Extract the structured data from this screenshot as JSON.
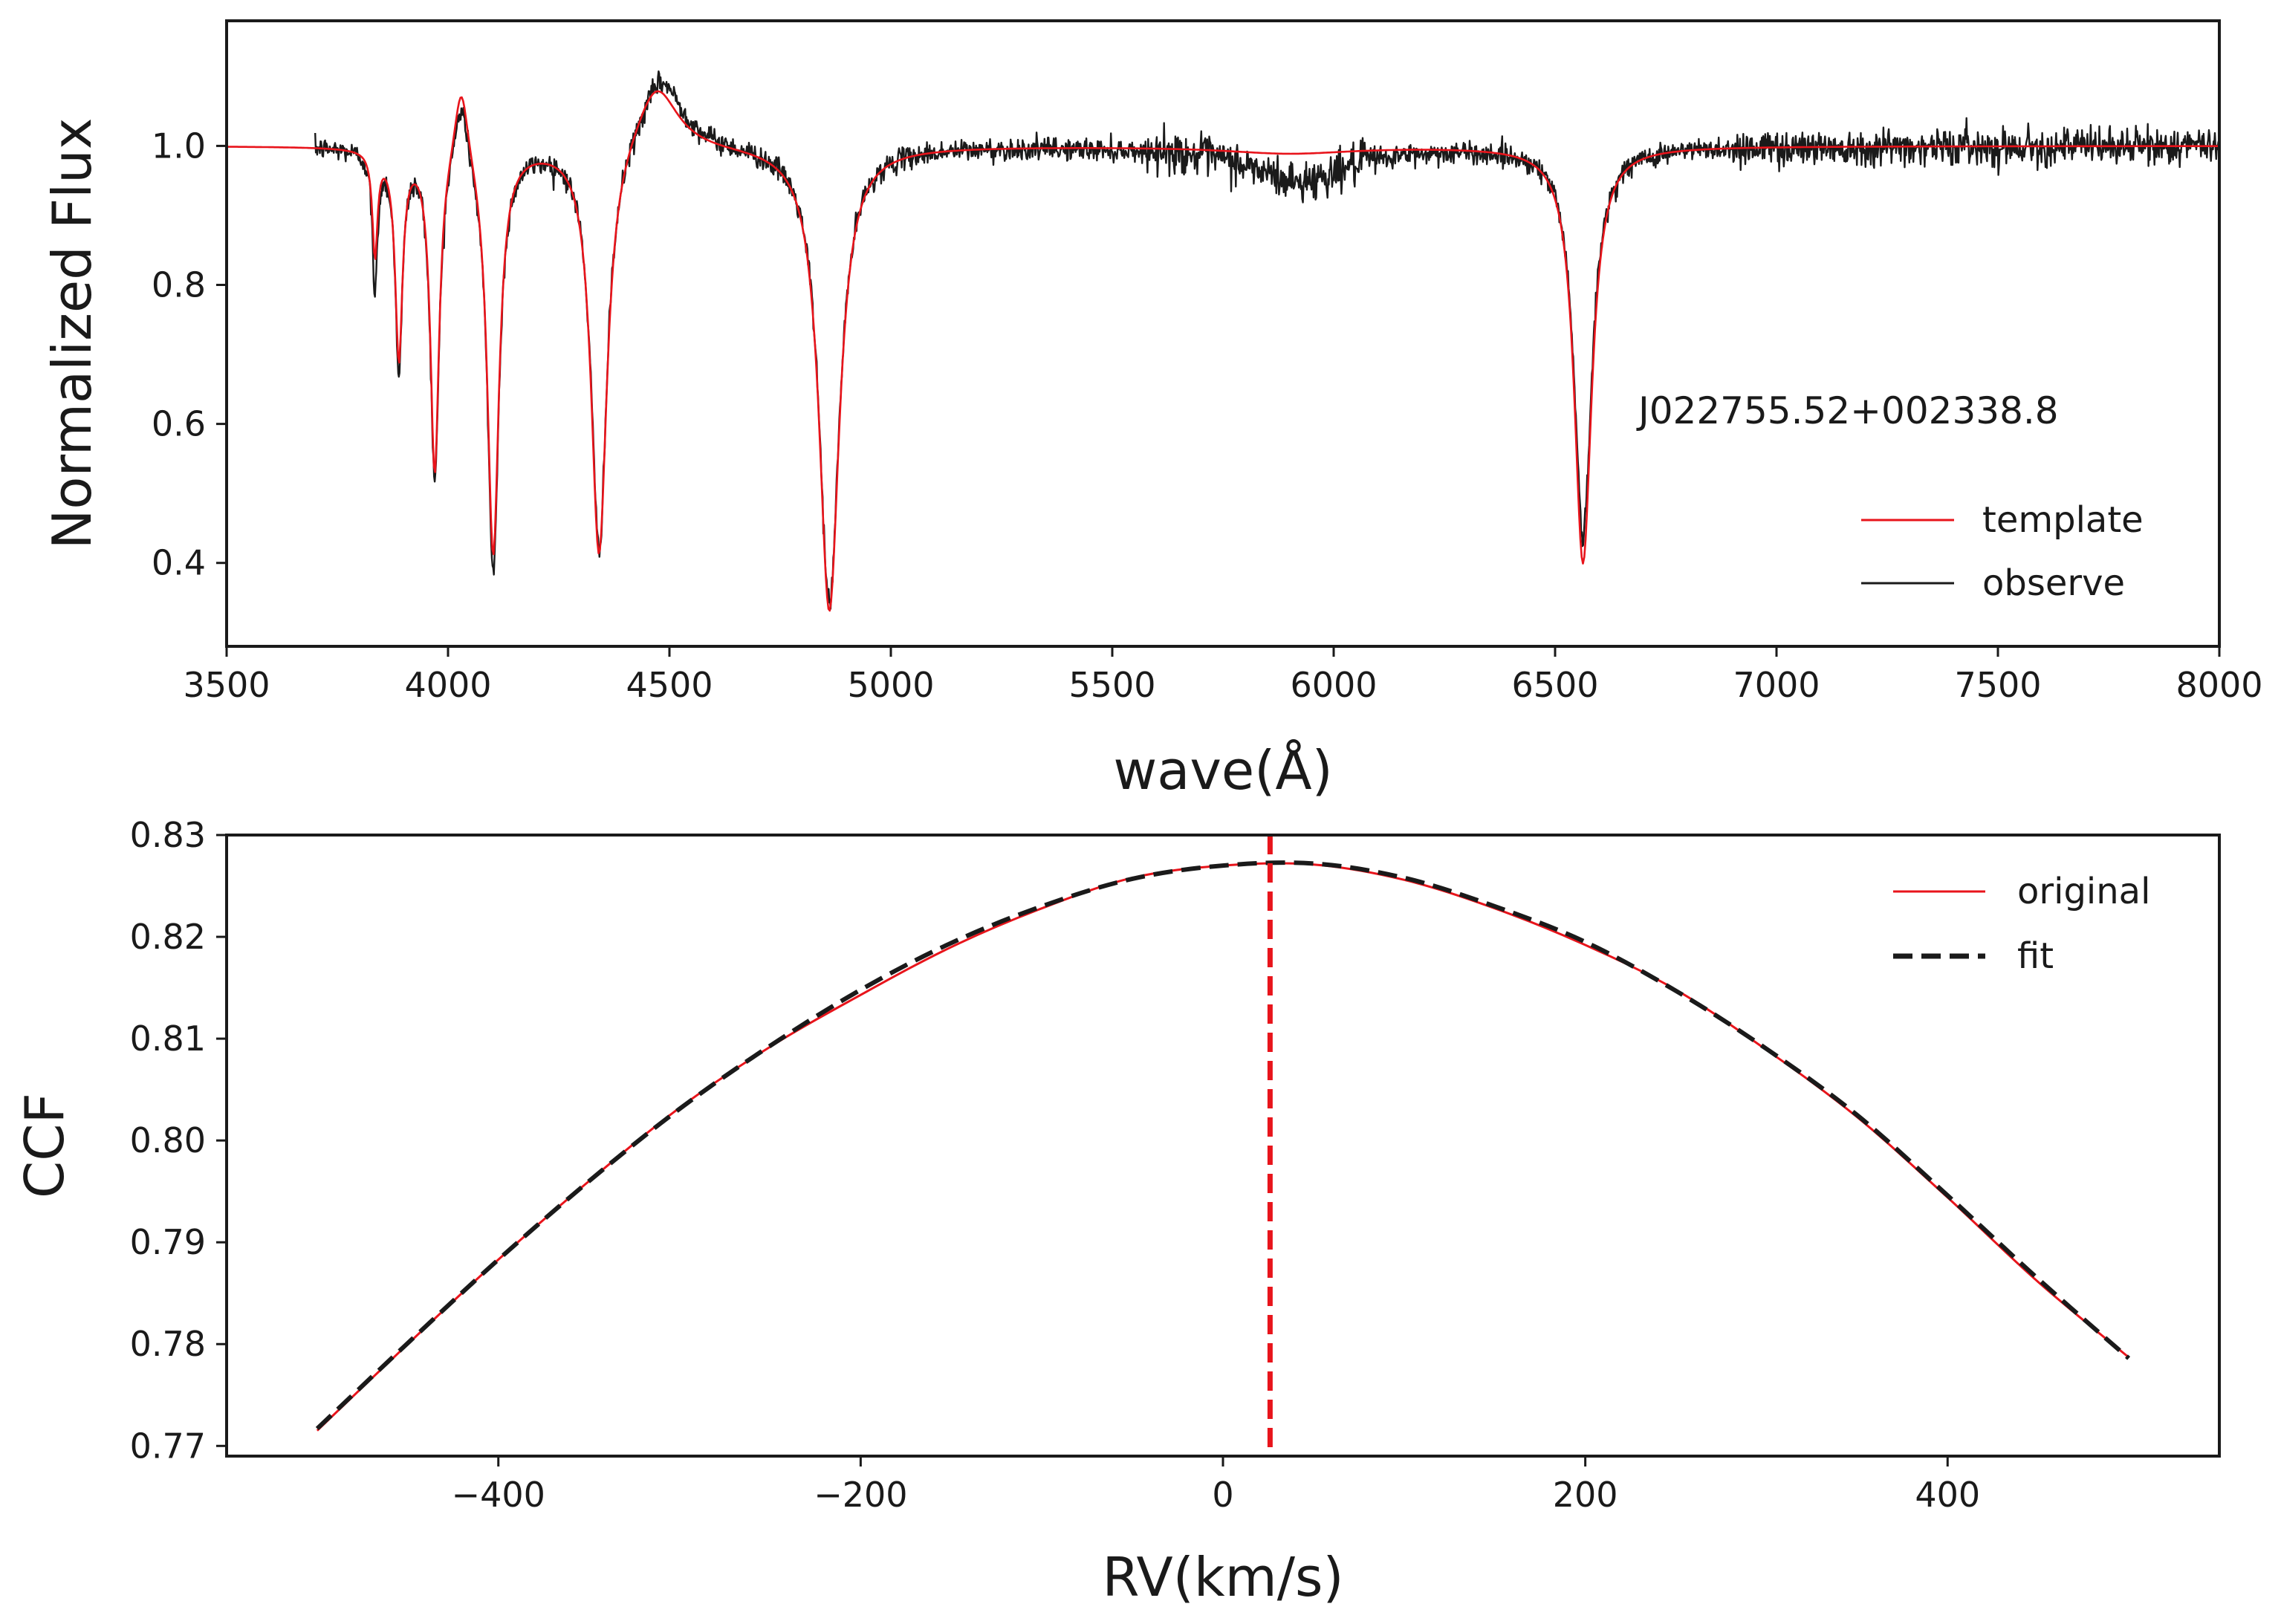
{
  "chart_data": [
    {
      "type": "line",
      "xlabel": "wave(Å)",
      "ylabel": "Normalized Flux",
      "xlim": [
        3500,
        8000
      ],
      "ylim": [
        0.28,
        1.18
      ],
      "xticks": [
        "3500",
        "4000",
        "4500",
        "5000",
        "5500",
        "6000",
        "6500",
        "7000",
        "7500",
        "8000"
      ],
      "yticks": [
        "0.4",
        "0.6",
        "0.8",
        "1.0"
      ],
      "annotation": "J022755.52+002338.8",
      "legend": {
        "position": "lower-right",
        "entries": [
          "template",
          "observe"
        ]
      },
      "colors": {
        "template": "#e8141b",
        "observe": "#1a1a1a"
      },
      "continuum": 1.0,
      "series": [
        {
          "name": "template",
          "x_start": 3500,
          "features": [
            {
              "center": 3835,
              "depth": 0.15,
              "width": 7
            },
            {
              "center": 3889,
              "depth": 0.3,
              "width": 10
            },
            {
              "center": 3970,
              "depth": 0.47,
              "width": 12
            },
            {
              "center": 4102,
              "depth": 0.59,
              "width": 16
            },
            {
              "center": 4341,
              "depth": 0.6,
              "width": 22
            },
            {
              "center": 4861,
              "depth": 0.67,
              "width": 28
            },
            {
              "center": 6563,
              "depth": 0.6,
              "width": 24
            },
            {
              "center": 4030,
              "depth": -0.12,
              "width": 20
            },
            {
              "center": 4470,
              "depth": -0.1,
              "width": 60
            },
            {
              "center": 5900,
              "depth": 0.01,
              "width": 180
            }
          ]
        },
        {
          "name": "observe",
          "x_start": 3700,
          "features": [
            {
              "center": 3835,
              "depth": 0.2,
              "width": 7
            },
            {
              "center": 3889,
              "depth": 0.31,
              "width": 10
            },
            {
              "center": 3970,
              "depth": 0.48,
              "width": 12
            },
            {
              "center": 4102,
              "depth": 0.61,
              "width": 16
            },
            {
              "center": 4341,
              "depth": 0.59,
              "width": 22
            },
            {
              "center": 4861,
              "depth": 0.66,
              "width": 28
            },
            {
              "center": 6563,
              "depth": 0.56,
              "width": 24
            },
            {
              "center": 4030,
              "depth": -0.1,
              "width": 20
            },
            {
              "center": 4480,
              "depth": -0.11,
              "width": 60
            },
            {
              "center": 5920,
              "depth": 0.05,
              "width": 130
            }
          ],
          "noise_level": 0.008
        }
      ]
    },
    {
      "type": "line",
      "xlabel": "RV(km/s)",
      "ylabel": "CCF",
      "xlim": [
        -550,
        550
      ],
      "ylim": [
        0.769,
        0.83
      ],
      "xticks": [
        "−400",
        "−200",
        "0",
        "200",
        "400"
      ],
      "xtick_values": [
        -400,
        -200,
        0,
        200,
        400
      ],
      "yticks": [
        "0.77",
        "0.78",
        "0.79",
        "0.80",
        "0.81",
        "0.82",
        "0.83"
      ],
      "ytick_values": [
        0.77,
        0.78,
        0.79,
        0.8,
        0.81,
        0.82,
        0.83
      ],
      "legend": {
        "position": "top-right",
        "entries": [
          "original",
          "fit"
        ]
      },
      "colors": {
        "original": "#e8141b",
        "fit": "#1a1a1a",
        "peak_line": "#e8141b"
      },
      "peak_rv": 26,
      "series": [
        {
          "name": "original",
          "x": [
            -500,
            -450,
            -400,
            -350,
            -300,
            -250,
            -200,
            -150,
            -100,
            -50,
            0,
            50,
            100,
            150,
            200,
            250,
            300,
            350,
            400,
            450,
            500
          ],
          "y": [
            0.7715,
            0.78,
            0.7883,
            0.796,
            0.8032,
            0.8092,
            0.8143,
            0.819,
            0.8228,
            0.8258,
            0.827,
            0.8271,
            0.8256,
            0.8228,
            0.8192,
            0.8148,
            0.8089,
            0.8023,
            0.7944,
            0.7861,
            0.7787
          ]
        },
        {
          "name": "fit",
          "x": [
            -500,
            -450,
            -400,
            -350,
            -300,
            -250,
            -200,
            -150,
            -100,
            -50,
            0,
            50,
            100,
            150,
            200,
            250,
            300,
            350,
            400,
            450,
            500
          ],
          "y": [
            0.7717,
            0.7801,
            0.7883,
            0.796,
            0.8031,
            0.8093,
            0.8148,
            0.8194,
            0.823,
            0.8257,
            0.827,
            0.8272,
            0.8258,
            0.823,
            0.8195,
            0.8147,
            0.809,
            0.8025,
            0.7946,
            0.7864,
            0.7786
          ]
        }
      ]
    }
  ]
}
